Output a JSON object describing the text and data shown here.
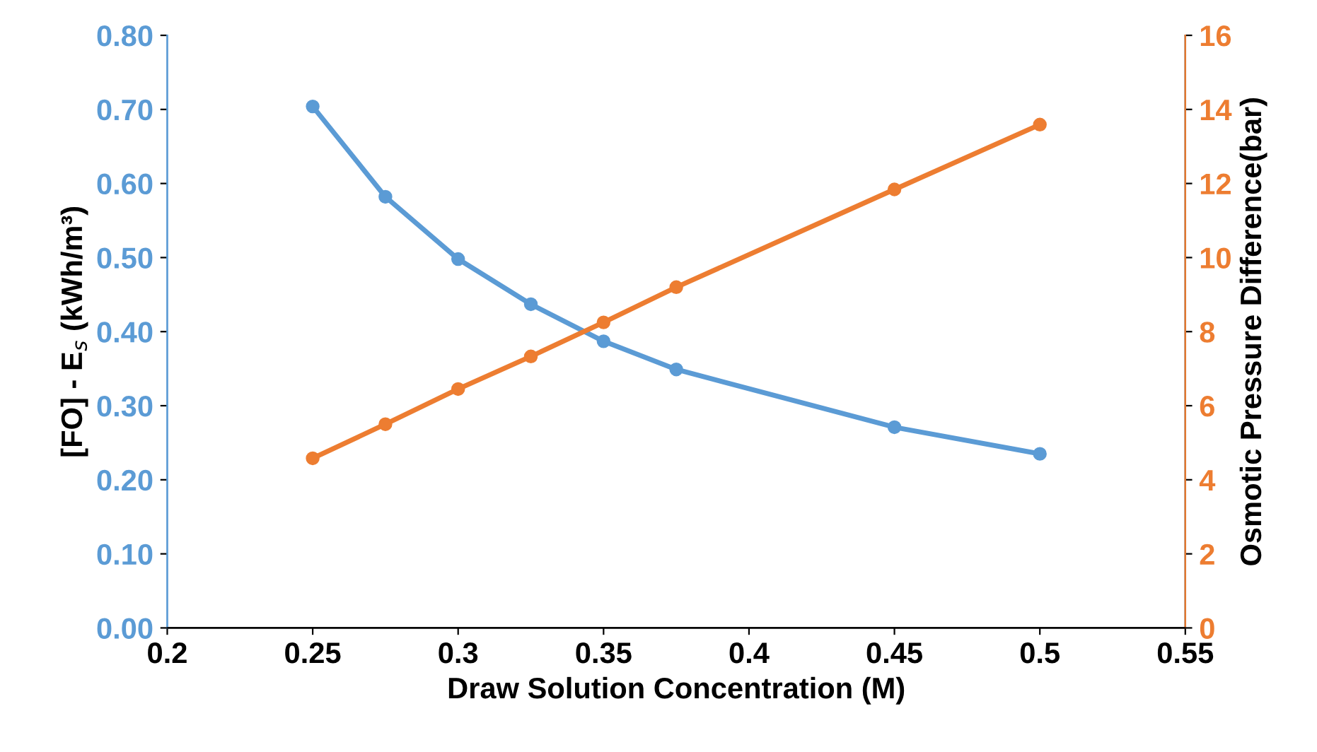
{
  "chart_data": {
    "type": "line",
    "xlabel": "Draw Solution Concentration (M)",
    "ylabel": "[FO] - E$_{s}$ (kWh/m³)",
    "y2label": "Osmotic Pressure Difference(bar)",
    "x": [
      0.25,
      0.275,
      0.3,
      0.325,
      0.35,
      0.375,
      0.45,
      0.5
    ],
    "series": [
      {
        "color": "#5b9bd5",
        "values": [
          0.704,
          0.582,
          0.498,
          0.437,
          0.387,
          0.349,
          0.271,
          0.235
        ]
      },
      {
        "color": "#ed7d31",
        "axis": "y2",
        "values": [
          4.58,
          5.5,
          6.45,
          7.33,
          8.25,
          9.2,
          11.84,
          13.59
        ]
      }
    ],
    "xlim": [
      0.2,
      0.55
    ],
    "xticks": [
      0.2,
      0.25,
      0.3,
      0.35,
      0.4,
      0.45,
      0.5,
      0.55
    ],
    "ylim": [
      0,
      0.8
    ],
    "yticks": [
      {
        "value": 0,
        "label": "0.00"
      },
      {
        "value": 0.1,
        "label": "0.10"
      },
      {
        "value": 0.2,
        "label": "0.20"
      },
      {
        "value": 0.3,
        "label": "0.30"
      },
      {
        "value": 0.4,
        "label": "0.40"
      },
      {
        "value": 0.5,
        "label": "0.50"
      },
      {
        "value": 0.6,
        "label": "0.60"
      },
      {
        "value": 0.7,
        "label": "0.70"
      },
      {
        "value": 0.8,
        "label": "0.80"
      }
    ],
    "y2lim": [
      0,
      16
    ],
    "y2ticks": [
      0,
      2,
      4,
      6,
      8,
      10,
      12,
      14,
      16
    ],
    "marker": "circle",
    "line_style": "solid",
    "grid": false,
    "legend": false
  }
}
